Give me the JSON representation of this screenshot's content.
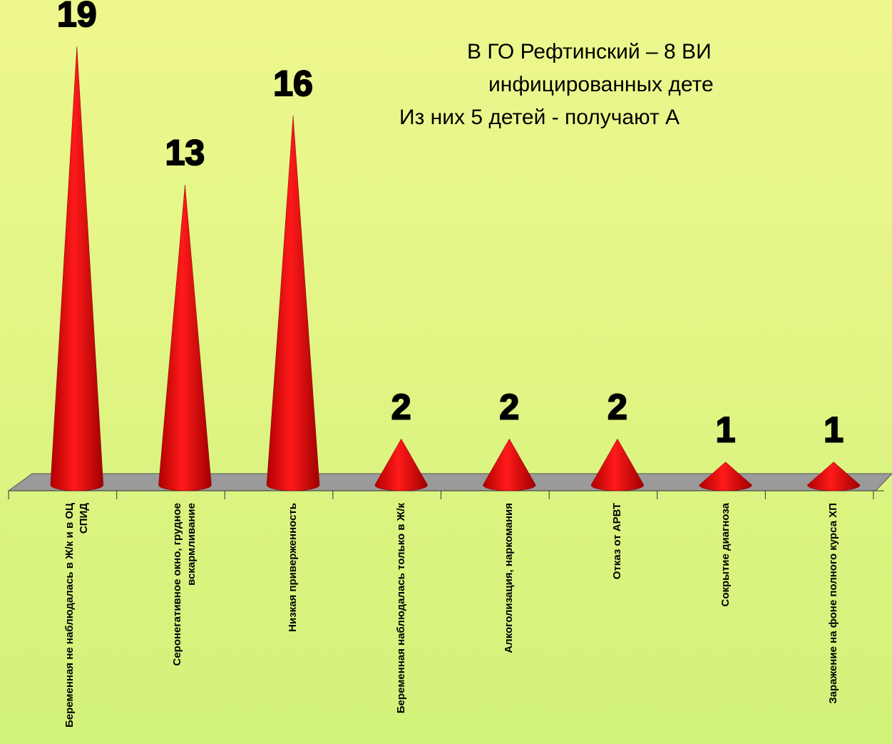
{
  "chart_data": {
    "type": "cone",
    "annotation": [
      "В ГО Рефтинский – 8 ВИ",
      "инфицированных дете",
      "Из них 5 детей - получают А"
    ],
    "categories": [
      "Беременная не наблюдалась в Ж/к и в ОЦ СПИД",
      "Серонегативное окно, грудное вскармливание",
      "Низкая приверженность",
      "Беременная наблюдалась только в Ж/к",
      "Алкоголизация, наркомания",
      "Отказ от АРВТ",
      "Сокрытие диагноза",
      "Заражение на фоне полного курса ХП"
    ],
    "values": [
      19,
      13,
      16,
      2,
      2,
      2,
      1,
      1
    ],
    "color": "#ff0000",
    "ylim": [
      0,
      19
    ]
  }
}
